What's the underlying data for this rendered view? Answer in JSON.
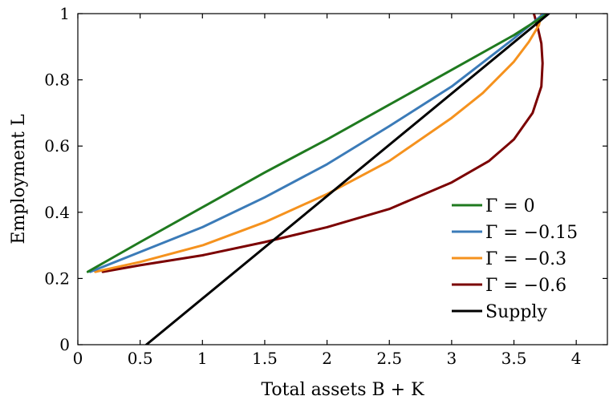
{
  "chart_data": {
    "type": "line",
    "xlabel": "Total assets B + K",
    "ylabel": "Employment L",
    "xlim": [
      0,
      4.25
    ],
    "ylim": [
      0,
      1
    ],
    "xticks": [
      "0",
      "0.5",
      "1",
      "1.5",
      "2",
      "2.5",
      "3",
      "3.5",
      "4"
    ],
    "yticks": [
      "0",
      "0.2",
      "0.4",
      "0.6",
      "0.8",
      "1"
    ],
    "grid": false,
    "legend_position": "bottom-right",
    "series": [
      {
        "name": "Γ = 0",
        "color": "#1f7a1f",
        "x": [
          0.08,
          0.5,
          1.0,
          1.5,
          2.0,
          2.5,
          3.0,
          3.5,
          3.77
        ],
        "y": [
          0.22,
          0.31,
          0.415,
          0.52,
          0.62,
          0.725,
          0.83,
          0.935,
          1.0
        ]
      },
      {
        "name": "Γ = −0.15",
        "color": "#3b7bb8",
        "x": [
          0.1,
          0.5,
          1.0,
          1.5,
          2.0,
          2.5,
          3.0,
          3.5,
          3.74
        ],
        "y": [
          0.22,
          0.28,
          0.355,
          0.445,
          0.545,
          0.66,
          0.78,
          0.925,
          1.0
        ]
      },
      {
        "name": "Γ = −0.3",
        "color": "#f5921e",
        "x": [
          0.14,
          0.5,
          1.0,
          1.5,
          2.0,
          2.5,
          3.0,
          3.25,
          3.5,
          3.62,
          3.7,
          3.72
        ],
        "y": [
          0.22,
          0.25,
          0.3,
          0.37,
          0.455,
          0.555,
          0.685,
          0.76,
          0.855,
          0.915,
          0.965,
          1.0
        ]
      },
      {
        "name": "Γ = −0.6",
        "color": "#7b0000",
        "x": [
          0.2,
          0.5,
          1.0,
          1.5,
          2.0,
          2.5,
          3.0,
          3.3,
          3.5,
          3.65,
          3.72,
          3.73,
          3.72,
          3.69,
          3.66
        ],
        "y": [
          0.22,
          0.24,
          0.27,
          0.31,
          0.355,
          0.41,
          0.49,
          0.555,
          0.62,
          0.7,
          0.78,
          0.85,
          0.91,
          0.96,
          1.0
        ]
      },
      {
        "name": "Supply",
        "color": "#000000",
        "x": [
          0.55,
          3.78
        ],
        "y": [
          0.0,
          1.0
        ]
      }
    ]
  }
}
